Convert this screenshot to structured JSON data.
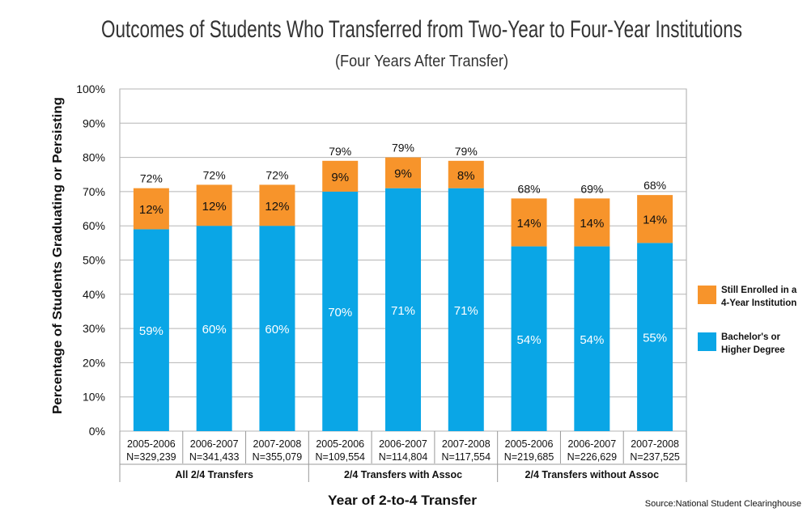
{
  "chart_data": {
    "type": "bar",
    "stacked": true,
    "title": "Outcomes of Students Who Transferred from Two-Year to Four-Year Institutions",
    "subtitle": "(Four Years After Transfer)",
    "xlabel": "Year of 2-to-4 Transfer",
    "ylabel": "Percentage of Students Graduating or Persisting",
    "ylim": [
      0,
      100
    ],
    "yticks": [
      "0%",
      "10%",
      "20%",
      "30%",
      "40%",
      "50%",
      "60%",
      "70%",
      "80%",
      "90%",
      "100%"
    ],
    "grid": true,
    "legend_position": "right",
    "categories": [
      {
        "year": "2005-2006",
        "n": "N=329,239",
        "group": "All 2/4 Transfers"
      },
      {
        "year": "2006-2007",
        "n": "N=341,433",
        "group": "All 2/4 Transfers"
      },
      {
        "year": "2007-2008",
        "n": "N=355,079",
        "group": "All 2/4 Transfers"
      },
      {
        "year": "2005-2006",
        "n": "N=109,554",
        "group": "2/4 Transfers with Assoc"
      },
      {
        "year": "2006-2007",
        "n": "N=114,804",
        "group": "2/4 Transfers with Assoc"
      },
      {
        "year": "2007-2008",
        "n": "N=117,554",
        "group": "2/4 Transfers with Assoc"
      },
      {
        "year": "2005-2006",
        "n": "N=219,685",
        "group": "2/4 Transfers without Assoc"
      },
      {
        "year": "2006-2007",
        "n": "N=226,629",
        "group": "2/4 Transfers without Assoc"
      },
      {
        "year": "2007-2008",
        "n": "N=237,525",
        "group": "2/4 Transfers without Assoc"
      }
    ],
    "groups": [
      "All 2/4 Transfers",
      "2/4 Transfers with Assoc",
      "2/4 Transfers without Assoc"
    ],
    "series": [
      {
        "name": "Bachelor's or Higher Degree",
        "color": "#0aa6e6",
        "values": [
          59,
          60,
          60,
          70,
          71,
          71,
          54,
          54,
          55
        ],
        "labels": [
          "59%",
          "60%",
          "60%",
          "70%",
          "71%",
          "71%",
          "54%",
          "54%",
          "55%"
        ]
      },
      {
        "name": "Still Enrolled in a 4-Year Institution",
        "color": "#f7942b",
        "values": [
          12,
          12,
          12,
          9,
          9,
          8,
          14,
          14,
          14
        ],
        "labels": [
          "12%",
          "12%",
          "12%",
          "9%",
          "9%",
          "8%",
          "14%",
          "14%",
          "14%"
        ]
      }
    ],
    "totals": [
      72,
      72,
      72,
      79,
      79,
      79,
      68,
      69,
      68
    ],
    "total_labels": [
      "72%",
      "72%",
      "72%",
      "79%",
      "79%",
      "79%",
      "68%",
      "69%",
      "68%"
    ],
    "legend": [
      {
        "series": 1,
        "lines": [
          "Still Enrolled in a",
          "4-Year Institution"
        ]
      },
      {
        "series": 0,
        "lines": [
          "Bachelor's or",
          "Higher Degree"
        ]
      }
    ],
    "source": "Source:National Student Clearinghouse"
  }
}
